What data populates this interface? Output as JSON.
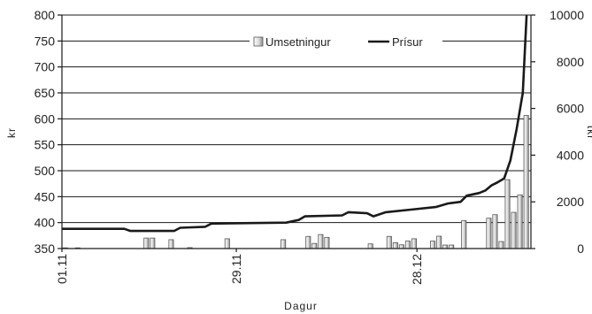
{
  "chart_data": {
    "type": "bar+line",
    "xlabel": "Dagur",
    "ylabel_left": "kr",
    "ylabel_right": "tkr",
    "ylim_left": [
      350,
      800
    ],
    "ylim_right": [
      0,
      10000
    ],
    "yticks_left": [
      "350",
      "400",
      "450",
      "500",
      "550",
      "600",
      "650",
      "700",
      "750",
      "800"
    ],
    "yticks_right": [
      "0",
      "2000",
      "4000",
      "6000",
      "8000",
      "10000"
    ],
    "x_tick_labels": [
      {
        "label": "01.11",
        "day": 0
      },
      {
        "label": "29.11",
        "day": 28
      },
      {
        "label": "28.12",
        "day": 57
      }
    ],
    "grid": true,
    "legend_position": "top-right",
    "series": [
      {
        "name": "Umsetningur",
        "type": "bar",
        "axis": "right",
        "points": [
          {
            "day": 0,
            "value": 30
          },
          {
            "day": 2,
            "value": 30
          },
          {
            "day": 13,
            "value": 450
          },
          {
            "day": 14,
            "value": 450
          },
          {
            "day": 17,
            "value": 380
          },
          {
            "day": 20,
            "value": 40
          },
          {
            "day": 26,
            "value": 420
          },
          {
            "day": 35,
            "value": 380
          },
          {
            "day": 39,
            "value": 520
          },
          {
            "day": 40,
            "value": 220
          },
          {
            "day": 41,
            "value": 600
          },
          {
            "day": 42,
            "value": 480
          },
          {
            "day": 49,
            "value": 200
          },
          {
            "day": 52,
            "value": 520
          },
          {
            "day": 53,
            "value": 250
          },
          {
            "day": 54,
            "value": 160
          },
          {
            "day": 55,
            "value": 320
          },
          {
            "day": 56,
            "value": 420
          },
          {
            "day": 59,
            "value": 320
          },
          {
            "day": 60,
            "value": 530
          },
          {
            "day": 61,
            "value": 150
          },
          {
            "day": 62,
            "value": 150
          },
          {
            "day": 64,
            "value": 1200
          },
          {
            "day": 68,
            "value": 1300
          },
          {
            "day": 69,
            "value": 1450
          },
          {
            "day": 70,
            "value": 300
          },
          {
            "day": 71,
            "value": 2950
          },
          {
            "day": 72,
            "value": 1550
          },
          {
            "day": 73,
            "value": 2300
          },
          {
            "day": 74,
            "value": 5700
          }
        ]
      },
      {
        "name": "Prísur",
        "type": "line",
        "axis": "left",
        "points": [
          {
            "day": 0,
            "value": 388
          },
          {
            "day": 10,
            "value": 388
          },
          {
            "day": 11,
            "value": 384
          },
          {
            "day": 18,
            "value": 384
          },
          {
            "day": 19,
            "value": 390
          },
          {
            "day": 23,
            "value": 392
          },
          {
            "day": 24,
            "value": 398
          },
          {
            "day": 36,
            "value": 400
          },
          {
            "day": 38,
            "value": 405
          },
          {
            "day": 39,
            "value": 412
          },
          {
            "day": 45,
            "value": 414
          },
          {
            "day": 46,
            "value": 420
          },
          {
            "day": 49,
            "value": 418
          },
          {
            "day": 50,
            "value": 412
          },
          {
            "day": 52,
            "value": 420
          },
          {
            "day": 56,
            "value": 425
          },
          {
            "day": 60,
            "value": 430
          },
          {
            "day": 62,
            "value": 437
          },
          {
            "day": 64,
            "value": 440
          },
          {
            "day": 65,
            "value": 452
          },
          {
            "day": 67,
            "value": 457
          },
          {
            "day": 68,
            "value": 462
          },
          {
            "day": 69,
            "value": 472
          },
          {
            "day": 70,
            "value": 478
          },
          {
            "day": 71,
            "value": 485
          },
          {
            "day": 72,
            "value": 520
          },
          {
            "day": 73,
            "value": 580
          },
          {
            "day": 74,
            "value": 650
          },
          {
            "day": 74.6,
            "value": 800
          }
        ]
      }
    ]
  }
}
